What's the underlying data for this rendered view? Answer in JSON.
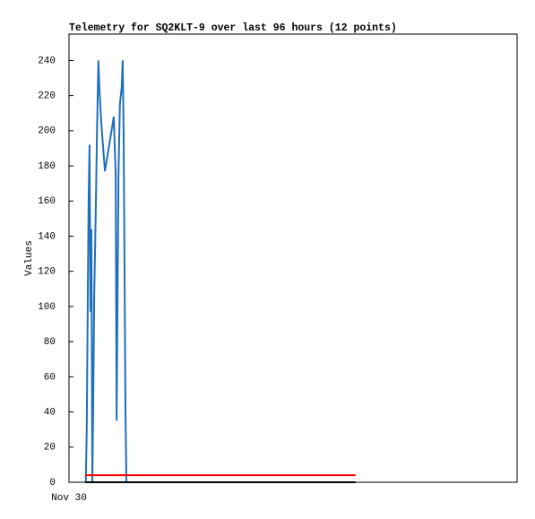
{
  "chart_data": {
    "type": "line",
    "title": "Telemetry for SQ2KLT-9 over last 96 hours (12 points)",
    "y_label": "Values",
    "xlim": [
      0,
      96
    ],
    "xticks": [
      {
        "value": 0,
        "label": "Nov 30"
      }
    ],
    "ylim": [
      0,
      255
    ],
    "yticks": [
      0,
      20,
      40,
      60,
      80,
      100,
      120,
      140,
      160,
      180,
      200,
      220,
      240
    ],
    "series": [
      {
        "color": "#1f6fbf",
        "x": [
          3.6,
          3.8,
          4.0,
          4.2,
          4.4,
          4.6,
          4.8,
          5.0,
          5.2,
          5.4,
          5.6,
          5.8,
          6.0,
          6.3,
          6.5,
          6.9,
          7.7,
          9.6,
          9.8,
          10.0,
          10.2,
          10.4,
          10.6,
          10.9,
          11.3,
          11.5,
          11.7,
          11.9,
          12.1,
          12.3
        ],
        "values": [
          0,
          30,
          97,
          160,
          192,
          97,
          144,
          0,
          48,
          106,
          135,
          165,
          200,
          240,
          225,
          205,
          177,
          208,
          190,
          175,
          35,
          105,
          175,
          215,
          225,
          240,
          200,
          120,
          40,
          0
        ]
      },
      {
        "color": "#ff0000",
        "x": [
          3.5,
          61.4
        ],
        "values": [
          4,
          4
        ]
      },
      {
        "color": "#000000",
        "x": [
          3.5,
          61.4
        ],
        "values": [
          0,
          0
        ]
      }
    ]
  }
}
